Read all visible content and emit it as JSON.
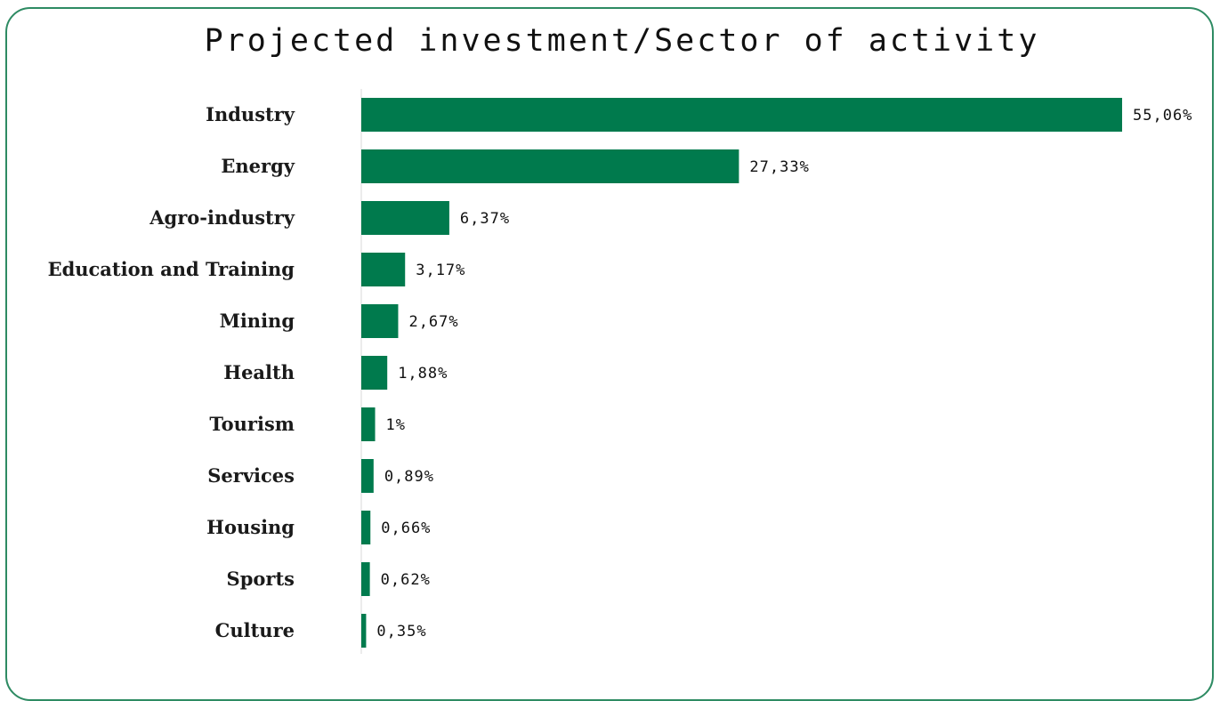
{
  "chart_data": {
    "type": "bar",
    "orientation": "horizontal",
    "title": "Projected investment/Sector of activity",
    "categories": [
      "Industry",
      "Energy",
      "Agro-industry",
      "Education and Training",
      "Mining",
      "Health",
      "Tourism",
      "Services",
      "Housing",
      "Sports",
      "Culture"
    ],
    "values": [
      55.06,
      27.33,
      6.37,
      3.17,
      2.67,
      1.88,
      1,
      0.89,
      0.66,
      0.62,
      0.35
    ],
    "value_labels": [
      "55,06%",
      "27,33%",
      "6,37%",
      "3,17%",
      "2,67%",
      "1,88%",
      "1%",
      "0,89%",
      "0,66%",
      "0,62%",
      "0,35%"
    ],
    "xlabel": "",
    "ylabel": "",
    "grid": false,
    "legend": "none",
    "bar_color": "#007a4d",
    "frame_color": "#2e8b63"
  }
}
